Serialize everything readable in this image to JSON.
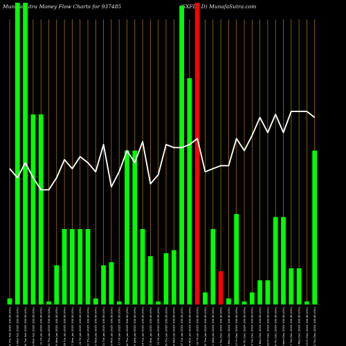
{
  "header": {
    "title_left": "MunafaSutra  Money Flow  Charts for 937485",
    "title_right": "(SXFL2 D) MunafaSutra.com"
  },
  "colors": {
    "background": "#000000",
    "bar_up": "#00ff00",
    "bar_down": "#ff0000",
    "line": "#ffffff",
    "gridline": "#b8860b",
    "label": "#ffffff"
  },
  "chart_data": {
    "type": "bar",
    "title": "MunafaSutra  Money Flow  Charts for 937485",
    "subtitle": "(SXFL2 D) MunafaSutra.com",
    "categories": [
      "06 Thu Feb 2025 100.00 (0%)",
      "05 Wed Feb 2025 100.00 (0%)",
      "04 Tue Feb 2025 100.00 (0%)",
      "03 Mon Feb 2025 100.00 (0%)",
      "31 Fri Jan 2025 100.00 (0%)",
      "30 Thu Jan 2025 100.00 (0%)",
      "29 Wed Jan 2025 100.00 (0%)",
      "28 Tue Jan 2025 100.00 (0%)",
      "27 Mon Jan 2025 100.00 (0%)",
      "24 Fri Jan 2025 100.00 (0%)",
      "23 Thu Jan 2025 100.00 (0%)",
      "22 Wed Jan 2025 100.00 (0%)",
      "21 Tue Jan 2025 100.00 (0%)",
      "20 Mon Jan 2025 100.00 (0%)",
      "17 Fri Jan 2025 100.00 (0%)",
      "16 Thu Jan 2025 100.00 (0%)",
      "15 Wed Jan 2025 100.00 (0%)",
      "14 Tue Jan 2025 100.00 (0%)",
      "13 Mon Jan 2025 100.00 (0%)",
      "10 Fri Jan 2025 100.00 (0%)",
      "09 Thu Jan 2025 100.00 (0%)",
      "08 Wed Jan 2025 100.00 (0%)",
      "07 Tue Jan 2025 100.00 (0%)",
      "06 Mon Jan 2025 100.00 (0%)",
      "03 Fri Jan 2025 100.00 (0%)",
      "02 Thu Jan 2025 100.00 (0%)",
      "01 Wed Jan 2025 100.00 (0%)",
      "31 Tue Dec 2024 100.00 (0%)",
      "30 Mon Dec 2024 100.00 (0%)",
      "27 Fri Dec 2024 100.00 (0%)",
      "26 Thu Dec 2024 100.00 (0%)",
      "24 Tue Dec 2024 100.00 (0%)",
      "23 Mon Dec 2024 100.00 (0%)",
      "20 Fri Dec 2024 100.00 (0%)",
      "19 Thu Dec 2024 100.00 (0%)",
      "18 Wed Dec 2024 100.00 (0%)",
      "17 Tue Dec 2024 100.00 (0%)",
      "16 Mon Dec 2024 100.00 (0%)",
      "13 Fri Dec 2024 100.00 (0%)",
      "12 Thu Dec 2024 100.00 (0%)"
    ],
    "bar_values": [
      2,
      100,
      100,
      63,
      63,
      1,
      13,
      25,
      25,
      25,
      25,
      2,
      13,
      14,
      1,
      51,
      51,
      25,
      16,
      1,
      17,
      18,
      99,
      75,
      100,
      4,
      25,
      11,
      2,
      30,
      1,
      4,
      8,
      8,
      29,
      29,
      12,
      12,
      1,
      51
    ],
    "bar_directions": [
      "up",
      "up",
      "up",
      "up",
      "up",
      "up",
      "up",
      "up",
      "up",
      "up",
      "up",
      "up",
      "up",
      "up",
      "up",
      "up",
      "up",
      "up",
      "up",
      "up",
      "up",
      "up",
      "up",
      "up",
      "down",
      "up",
      "up",
      "down",
      "up",
      "up",
      "up",
      "up",
      "up",
      "up",
      "up",
      "up",
      "up",
      "up",
      "up",
      "up"
    ],
    "line_values": [
      45,
      42,
      47,
      42,
      38,
      38,
      42,
      48,
      45,
      49,
      47,
      44,
      53,
      39,
      44,
      51,
      47,
      54,
      40,
      43,
      53,
      52,
      52,
      53,
      55,
      44,
      45,
      46,
      46,
      55,
      51,
      56,
      62,
      57,
      63,
      57,
      64,
      64,
      64,
      62
    ],
    "ylim": [
      0,
      100
    ],
    "grid": true
  }
}
